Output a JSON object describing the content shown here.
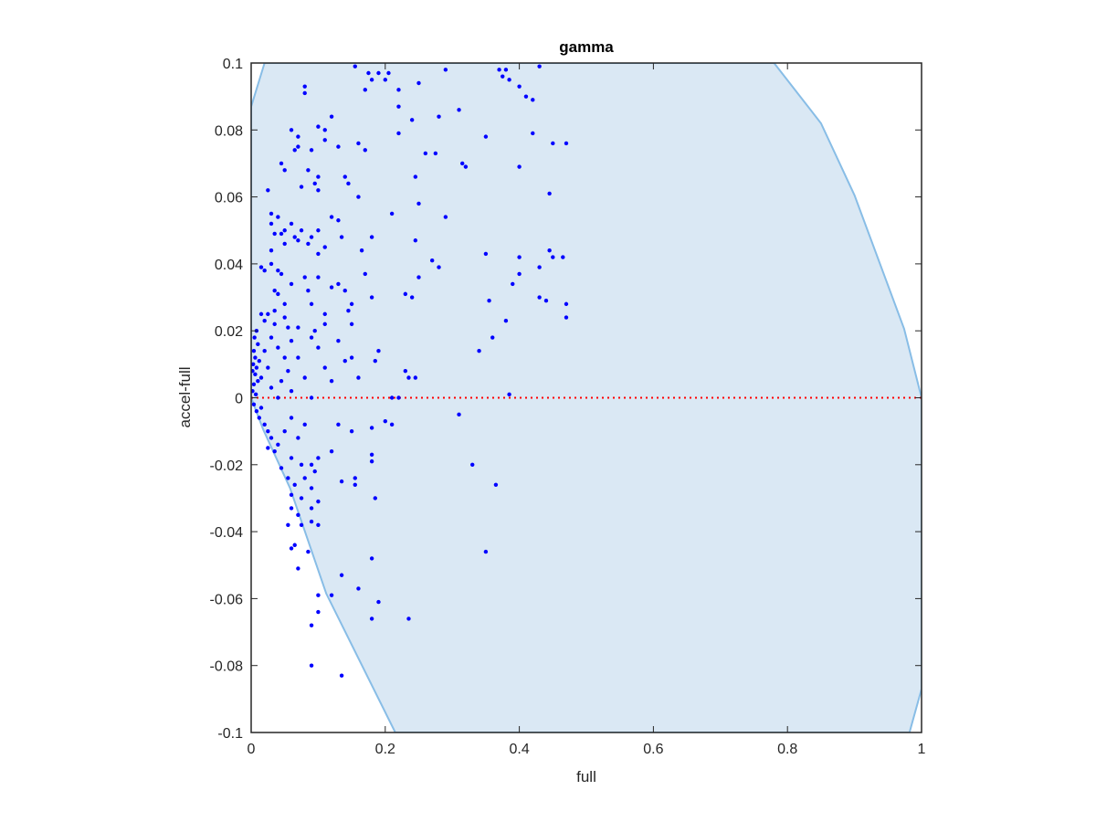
{
  "chart_data": {
    "type": "scatter",
    "title": "gamma",
    "x_label": "full",
    "y_label": "accel-full",
    "color": "#0000ff",
    "xlim": [
      0,
      1
    ],
    "ylim": [
      -0.1,
      0.1
    ],
    "xticks": [
      0,
      0.2,
      0.4,
      0.6,
      0.8,
      1
    ],
    "yticks": [
      -0.1,
      -0.08,
      -0.06,
      -0.04,
      -0.02,
      0,
      0.02,
      0.04,
      0.06,
      0.08,
      0.1
    ],
    "hline": {
      "value": 0,
      "color": "#ff0000"
    },
    "region": {
      "color": "#dae8f4",
      "edge_color": "#88bde6",
      "x": [
        0,
        0.02,
        0.78,
        0.85,
        0.9,
        0.974,
        1,
        1,
        0.982,
        0.215,
        0.112,
        0.058,
        0.018,
        0
      ],
      "y": [
        0.087,
        0.1,
        0.1,
        0.082,
        0.0605,
        0.0206,
        0,
        -0.087,
        -0.1,
        -0.1,
        -0.0585,
        -0.027,
        -0.0095,
        0
      ]
    },
    "x": [
      0.155,
      0.18,
      0.19,
      0.205,
      0.175,
      0.2,
      0.17,
      0.22,
      0.25,
      0.29,
      0.37,
      0.375,
      0.38,
      0.385,
      0.43,
      0.41,
      0.4,
      0.42,
      0.08,
      0.08,
      0.22,
      0.28,
      0.31,
      0.24,
      0.12,
      0.1,
      0.11,
      0.06,
      0.07,
      0.42,
      0.45,
      0.47,
      0.35,
      0.22,
      0.07,
      0.065,
      0.09,
      0.11,
      0.13,
      0.16,
      0.17,
      0.26,
      0.275,
      0.315,
      0.32,
      0.4,
      0.045,
      0.05,
      0.085,
      0.1,
      0.14,
      0.145,
      0.075,
      0.095,
      0.1,
      0.025,
      0.245,
      0.445,
      0.16,
      0.03,
      0.04,
      0.03,
      0.06,
      0.05,
      0.045,
      0.075,
      0.1,
      0.12,
      0.13,
      0.21,
      0.25,
      0.29,
      0.035,
      0.065,
      0.07,
      0.09,
      0.135,
      0.18,
      0.245,
      0.03,
      0.05,
      0.085,
      0.11,
      0.1,
      0.35,
      0.4,
      0.445,
      0.45,
      0.465,
      0.165,
      0.27,
      0.03,
      0.015,
      0.02,
      0.04,
      0.045,
      0.08,
      0.1,
      0.17,
      0.28,
      0.43,
      0.4,
      0.39,
      0.25,
      0.06,
      0.035,
      0.04,
      0.085,
      0.12,
      0.13,
      0.14,
      0.18,
      0.23,
      0.43,
      0.44,
      0.47,
      0.355,
      0.05,
      0.09,
      0.15,
      0.24,
      0.015,
      0.025,
      0.035,
      0.02,
      0.05,
      0.11,
      0.145,
      0.035,
      0.055,
      0.07,
      0.095,
      0.11,
      0.15,
      0.38,
      0.47,
      0.36,
      0.34,
      0.005,
      0.008,
      0.01,
      0.004,
      0.006,
      0.003,
      0.008,
      0.012,
      0.002,
      0.006,
      0.01,
      0.004,
      0.002,
      0.007,
      0.015,
      0.02,
      0.03,
      0.04,
      0.05,
      0.06,
      0.07,
      0.08,
      0.09,
      0.1,
      0.11,
      0.13,
      0.14,
      0.12,
      0.15,
      0.16,
      0.19,
      0.185,
      0.045,
      0.055,
      0.025,
      0.03,
      0.04,
      0.06,
      0.09,
      0.23,
      0.235,
      0.245,
      0.22,
      0.21,
      0.385,
      0.004,
      0.008,
      0.012,
      0.015,
      0.02,
      0.025,
      0.03,
      0.025,
      0.035,
      0.04,
      0.05,
      0.06,
      0.07,
      0.08,
      0.06,
      0.075,
      0.09,
      0.1,
      0.045,
      0.055,
      0.065,
      0.08,
      0.095,
      0.12,
      0.13,
      0.15,
      0.18,
      0.2,
      0.21,
      0.18,
      0.18,
      0.31,
      0.06,
      0.075,
      0.09,
      0.135,
      0.155,
      0.155,
      0.185,
      0.33,
      0.365,
      0.06,
      0.07,
      0.09,
      0.1,
      0.075,
      0.09,
      0.1,
      0.055,
      0.06,
      0.065,
      0.085,
      0.07,
      0.35,
      0.18,
      0.135,
      0.16,
      0.1,
      0.12,
      0.1,
      0.09,
      0.18,
      0.19,
      0.235,
      0.09,
      0.135
    ],
    "values": [
      0.099,
      0.095,
      0.097,
      0.097,
      0.097,
      0.095,
      0.092,
      0.092,
      0.094,
      0.098,
      0.098,
      0.096,
      0.098,
      0.095,
      0.099,
      0.09,
      0.093,
      0.089,
      0.093,
      0.091,
      0.087,
      0.084,
      0.086,
      0.083,
      0.084,
      0.081,
      0.08,
      0.08,
      0.078,
      0.079,
      0.076,
      0.076,
      0.078,
      0.079,
      0.075,
      0.074,
      0.074,
      0.077,
      0.075,
      0.076,
      0.074,
      0.073,
      0.073,
      0.07,
      0.069,
      0.069,
      0.07,
      0.068,
      0.068,
      0.066,
      0.066,
      0.064,
      0.063,
      0.064,
      0.062,
      0.062,
      0.066,
      0.061,
      0.06,
      0.055,
      0.054,
      0.052,
      0.052,
      0.05,
      0.049,
      0.05,
      0.05,
      0.054,
      0.053,
      0.055,
      0.058,
      0.054,
      0.049,
      0.048,
      0.047,
      0.048,
      0.048,
      0.048,
      0.047,
      0.044,
      0.046,
      0.046,
      0.045,
      0.043,
      0.043,
      0.042,
      0.044,
      0.042,
      0.042,
      0.044,
      0.041,
      0.04,
      0.039,
      0.038,
      0.038,
      0.037,
      0.036,
      0.036,
      0.037,
      0.039,
      0.039,
      0.037,
      0.034,
      0.036,
      0.034,
      0.032,
      0.031,
      0.032,
      0.033,
      0.034,
      0.032,
      0.03,
      0.031,
      0.03,
      0.029,
      0.028,
      0.029,
      0.028,
      0.028,
      0.028,
      0.03,
      0.025,
      0.025,
      0.026,
      0.023,
      0.024,
      0.025,
      0.026,
      0.022,
      0.021,
      0.021,
      0.02,
      0.022,
      0.022,
      0.023,
      0.024,
      0.018,
      0.014,
      0.018,
      0.02,
      0.016,
      0.014,
      0.012,
      0.01,
      0.009,
      0.011,
      0.008,
      0.007,
      0.005,
      0.004,
      0.002,
      0.001,
      0.006,
      0.014,
      0.018,
      0.015,
      0.012,
      0.017,
      0.012,
      0.006,
      0.018,
      0.015,
      0.009,
      0.017,
      0.011,
      0.005,
      0.012,
      0.006,
      0.014,
      0.011,
      0.005,
      0.008,
      0.009,
      0.003,
      0,
      0.002,
      0,
      0.008,
      0.006,
      0.006,
      0,
      0,
      0.001,
      -0.002,
      -0.004,
      -0.006,
      -0.003,
      -0.008,
      -0.01,
      -0.012,
      -0.015,
      -0.016,
      -0.014,
      -0.01,
      -0.006,
      -0.012,
      -0.008,
      -0.018,
      -0.02,
      -0.02,
      -0.018,
      -0.021,
      -0.024,
      -0.026,
      -0.024,
      -0.022,
      -0.016,
      -0.008,
      -0.01,
      -0.009,
      -0.007,
      -0.008,
      -0.017,
      -0.019,
      -0.005,
      -0.029,
      -0.03,
      -0.027,
      -0.025,
      -0.024,
      -0.026,
      -0.03,
      -0.02,
      -0.026,
      -0.033,
      -0.035,
      -0.033,
      -0.031,
      -0.038,
      -0.037,
      -0.038,
      -0.038,
      -0.045,
      -0.044,
      -0.046,
      -0.051,
      -0.046,
      -0.048,
      -0.053,
      -0.057,
      -0.059,
      -0.059,
      -0.064,
      -0.068,
      -0.066,
      -0.061,
      -0.066,
      -0.08,
      -0.083
    ]
  }
}
